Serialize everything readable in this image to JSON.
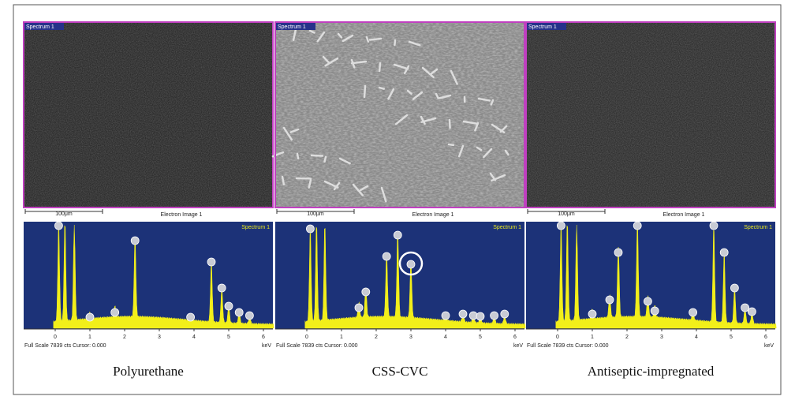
{
  "panels": [
    {
      "image_label": "Spectrum 1",
      "scale_bar": "100μm",
      "image_caption": "Electron Image 1",
      "spectrum_label": "Spectrum 1",
      "axis_ticks": [
        "0",
        "1",
        "2",
        "3",
        "4",
        "5",
        "6"
      ],
      "axis_unit": "keV",
      "footer": "Full Scale 7839 cts Cursor: 0.000",
      "caption": "Polyurethane"
    },
    {
      "image_label": "Spectrum 1",
      "scale_bar": "100μm",
      "image_caption": "Electron Image 1",
      "spectrum_label": "Spectrum 1",
      "axis_ticks": [
        "0",
        "1",
        "2",
        "3",
        "4",
        "5",
        "6"
      ],
      "axis_unit": "keV",
      "footer": "Full Scale 7839 cts Cursor: 0.000",
      "caption": "CSS-CVC"
    },
    {
      "image_label": "Spectrum 1",
      "scale_bar": "100μm",
      "image_caption": "Electron Image 1",
      "spectrum_label": "Spectrum 1",
      "axis_ticks": [
        "0",
        "1",
        "2",
        "3",
        "4",
        "5",
        "6"
      ],
      "axis_unit": "keV",
      "footer": "Full Scale 7839 cts Cursor: 0.000",
      "caption": "Antiseptic-impregnated"
    }
  ]
}
